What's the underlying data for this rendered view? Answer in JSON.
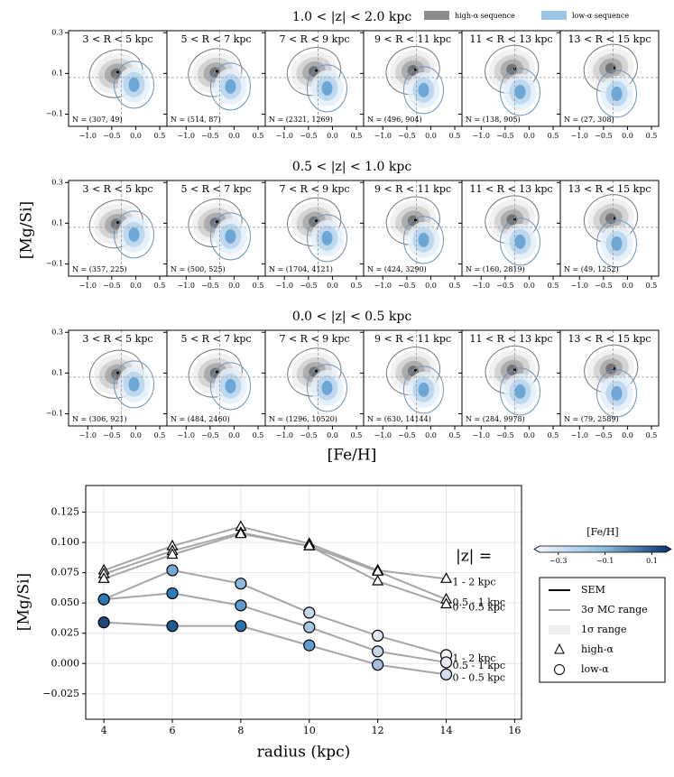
{
  "chart_data": [
    {
      "type": "contour-grid",
      "legend": [
        "high-α sequence",
        "low-α sequence"
      ],
      "legend_colors": [
        "#8c8c8c",
        "#9cc6e6"
      ],
      "ylabel": "[Mg/Si]",
      "xlabel": "[Fe/H]",
      "xlim": [
        -1.4,
        0.65
      ],
      "ylim": [
        -0.16,
        0.31
      ],
      "ref_x": -0.3,
      "ref_y": 0.08,
      "xticks": [
        {
          "value": -1,
          "label": "−1.0"
        },
        {
          "value": -0.5,
          "label": "−0.5"
        },
        {
          "value": 0,
          "label": "0.0"
        },
        {
          "value": 0.5,
          "label": "0.5"
        }
      ],
      "yticks": [
        {
          "value": -0.1,
          "label": "−0.1"
        },
        0.1,
        0.3
      ],
      "panel_labels": [
        "3 < R < 5 kpc",
        "5 < R < 7 kpc",
        "7 < R < 9 kpc",
        "9 < R < 11 kpc",
        "11 < R < 13 kpc",
        "13 < R < 15 kpc"
      ],
      "rows": [
        {
          "title": "1.0 < |z| < 2.0 kpc",
          "counts": [
            "N = (307, 49)",
            "N = (514, 87)",
            "N = (2321, 1269)",
            "N = (496, 904)",
            "N = (138, 905)",
            "N = (27, 308)"
          ]
        },
        {
          "title": "0.5 < |z| < 1.0 kpc",
          "counts": [
            "N = (357, 225)",
            "N = (500, 525)",
            "N = (1704, 4121)",
            "N = (424, 3290)",
            "N = (160, 2819)",
            "N = (49, 1252)"
          ]
        },
        {
          "title": "0.0 < |z| < 0.5 kpc",
          "counts": [
            "N = (306, 921)",
            "N = (484, 2460)",
            "N = (1296, 10520)",
            "N = (630, 14144)",
            "N = (284, 9978)",
            "N = (79, 2589)"
          ]
        }
      ]
    },
    {
      "type": "line",
      "xlabel": "radius (kpc)",
      "ylabel": "[Mg/Si]",
      "xlim": [
        3.47,
        16.2
      ],
      "ylim": [
        -0.046,
        0.147
      ],
      "xticks": [
        4,
        6,
        8,
        10,
        12,
        14,
        16
      ],
      "yticks": [
        {
          "value": -0.025,
          "label": "−0.025"
        },
        {
          "value": 0,
          "label": "0.000"
        },
        0.025,
        {
          "value": 0.05,
          "label": "0.050"
        },
        0.075,
        {
          "value": 0.1,
          "label": "0.100"
        },
        0.125
      ],
      "grid": true,
      "line_color": "#a6a6a6",
      "annotation": "|z| =",
      "x": [
        4,
        6,
        8,
        10,
        12,
        14
      ],
      "series": [
        {
          "name": "1 - 2 kpc",
          "marker": "triangle",
          "values": [
            0.077,
            0.097,
            0.113,
            0.099,
            0.077,
            0.07
          ]
        },
        {
          "name": "0.5 - 1 kpc",
          "marker": "triangle",
          "values": [
            0.074,
            0.093,
            0.108,
            0.097,
            0.076,
            0.053
          ]
        },
        {
          "name": "0 - 0.5 kpc",
          "marker": "triangle",
          "values": [
            0.07,
            0.09,
            0.107,
            0.097,
            0.068,
            0.049
          ]
        },
        {
          "name": "1 - 2 kpc",
          "marker": "circle",
          "values": [
            0.053,
            0.077,
            0.066,
            0.042,
            0.023,
            0.007
          ],
          "colors": [
            "#3a86c2",
            "#6fa8d6",
            "#8db9de",
            "#c6d8ec",
            "#dfe6f2",
            "#f3f3f8"
          ]
        },
        {
          "name": "0.5 - 1 kpc",
          "marker": "circle",
          "values": [
            0.053,
            0.058,
            0.048,
            0.03,
            0.01,
            0.001
          ],
          "colors": [
            "#2c7bb6",
            "#2c7bb6",
            "#5b9bd0",
            "#a7c6e3",
            "#c5d6ea",
            "#e6eaf3"
          ]
        },
        {
          "name": "0 - 0.5 kpc",
          "marker": "circle",
          "values": [
            0.034,
            0.031,
            0.031,
            0.015,
            -0.001,
            -0.009
          ],
          "colors": [
            "#1b4a7a",
            "#1f5a92",
            "#2a72b0",
            "#5d9bd0",
            "#a3c0e0",
            "#d4deee"
          ]
        }
      ],
      "colorbar": {
        "title": "[Fe/H]",
        "lim": [
          -0.38,
          0.16
        ],
        "ticks": [
          {
            "value": -0.3,
            "label": "−0.3"
          },
          {
            "value": -0.1,
            "label": "−0.1"
          },
          0.1
        ]
      },
      "legend": [
        "SEM",
        "3σ MC range",
        "1σ range",
        "high-α",
        "low-α"
      ]
    }
  ]
}
